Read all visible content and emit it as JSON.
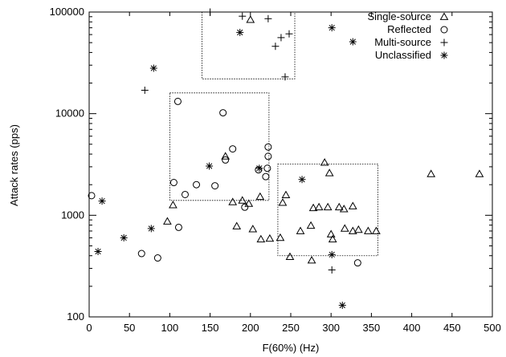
{
  "chart_data": {
    "type": "scatter",
    "xlabel": "F(60%) (Hz)",
    "ylabel": "Attack rates (pps)",
    "xlim": [
      0,
      500
    ],
    "ylim": [
      100,
      100000
    ],
    "y_scale": "log",
    "x_ticks": [
      "0",
      "50",
      "100",
      "150",
      "200",
      "250",
      "300",
      "350",
      "400",
      "450",
      "500"
    ],
    "y_ticks": [
      "100",
      "1000",
      "10000",
      "100000"
    ],
    "legend_position": "top-right",
    "grid": false,
    "series": [
      {
        "name": "Single-source",
        "marker": "triangle",
        "points": [
          [
            97,
            870
          ],
          [
            104,
            1260
          ],
          [
            169,
            3800
          ],
          [
            178,
            1350
          ],
          [
            183,
            780
          ],
          [
            190,
            1400
          ],
          [
            198,
            1300
          ],
          [
            203,
            730
          ],
          [
            212,
            1520
          ],
          [
            213,
            580
          ],
          [
            224,
            590
          ],
          [
            237,
            600
          ],
          [
            240,
            1330
          ],
          [
            244,
            1580
          ],
          [
            249,
            390
          ],
          [
            262,
            700
          ],
          [
            275,
            790
          ],
          [
            276,
            360
          ],
          [
            278,
            1180
          ],
          [
            285,
            1200
          ],
          [
            292,
            3300
          ],
          [
            296,
            1200
          ],
          [
            298,
            2600
          ],
          [
            300,
            650
          ],
          [
            302,
            580
          ],
          [
            310,
            1200
          ],
          [
            316,
            1150
          ],
          [
            317,
            740
          ],
          [
            327,
            1230
          ],
          [
            327,
            700
          ],
          [
            334,
            720
          ],
          [
            346,
            700
          ],
          [
            356,
            700
          ],
          [
            424,
            2550
          ],
          [
            484,
            2550
          ],
          [
            200,
            84000
          ]
        ]
      },
      {
        "name": "Reflected",
        "marker": "circle",
        "points": [
          [
            3,
            1560
          ],
          [
            65,
            420
          ],
          [
            85,
            380
          ],
          [
            105,
            2100
          ],
          [
            110,
            13200
          ],
          [
            111,
            760
          ],
          [
            119,
            1600
          ],
          [
            133,
            2000
          ],
          [
            156,
            1950
          ],
          [
            166,
            10200
          ],
          [
            169,
            3500
          ],
          [
            178,
            4500
          ],
          [
            193,
            1200
          ],
          [
            210,
            2800
          ],
          [
            219,
            2400
          ],
          [
            221,
            2900
          ],
          [
            222,
            3800
          ],
          [
            222,
            4700
          ],
          [
            333,
            340
          ]
        ]
      },
      {
        "name": "Multi-source",
        "marker": "plus",
        "points": [
          [
            69,
            17000
          ],
          [
            150,
            100000
          ],
          [
            190,
            91000
          ],
          [
            222,
            86000
          ],
          [
            231,
            46000
          ],
          [
            238,
            56000
          ],
          [
            243,
            23000
          ],
          [
            248,
            61000
          ],
          [
            301,
            290
          ]
        ]
      },
      {
        "name": "Unclassified",
        "marker": "asterisk",
        "points": [
          [
            11,
            440
          ],
          [
            16,
            1380
          ],
          [
            43,
            600
          ],
          [
            77,
            740
          ],
          [
            80,
            28000
          ],
          [
            149,
            3050
          ],
          [
            187,
            63000
          ],
          [
            211,
            2900
          ],
          [
            264,
            2250
          ],
          [
            301,
            70000
          ],
          [
            301,
            410
          ],
          [
            314,
            130
          ],
          [
            327,
            51000
          ]
        ]
      }
    ]
  }
}
